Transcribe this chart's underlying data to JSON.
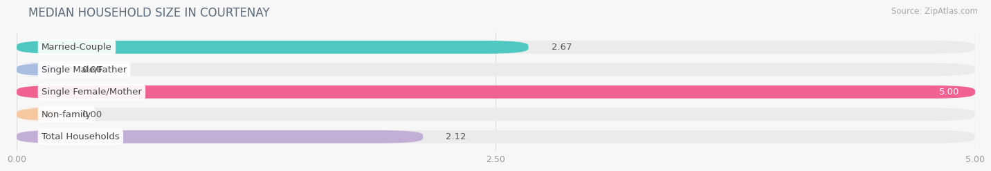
{
  "title": "MEDIAN HOUSEHOLD SIZE IN COURTENAY",
  "source": "Source: ZipAtlas.com",
  "categories": [
    "Married-Couple",
    "Single Male/Father",
    "Single Female/Mother",
    "Non-family",
    "Total Households"
  ],
  "values": [
    2.67,
    0.0,
    5.0,
    0.0,
    2.12
  ],
  "bar_colors": [
    "#4ec8c0",
    "#a8bde0",
    "#f06292",
    "#f5c8a0",
    "#c3aed6"
  ],
  "xlim_max": 5.0,
  "xticks": [
    0.0,
    2.5,
    5.0
  ],
  "xtick_labels": [
    "0.00",
    "2.50",
    "5.00"
  ],
  "bg_color": "#f7f7f7",
  "bar_bg_color": "#ebebeb",
  "label_box_color": "#ffffff",
  "title_color": "#5a6a7a",
  "source_color": "#aaaaaa",
  "value_color_dark": "#555555",
  "value_color_light": "#ffffff",
  "grid_color": "#dddddd",
  "title_fontsize": 12,
  "label_fontsize": 9.5,
  "value_fontsize": 9.5,
  "source_fontsize": 8.5,
  "tick_fontsize": 9,
  "bar_height": 0.58,
  "bar_spacing": 1.0
}
